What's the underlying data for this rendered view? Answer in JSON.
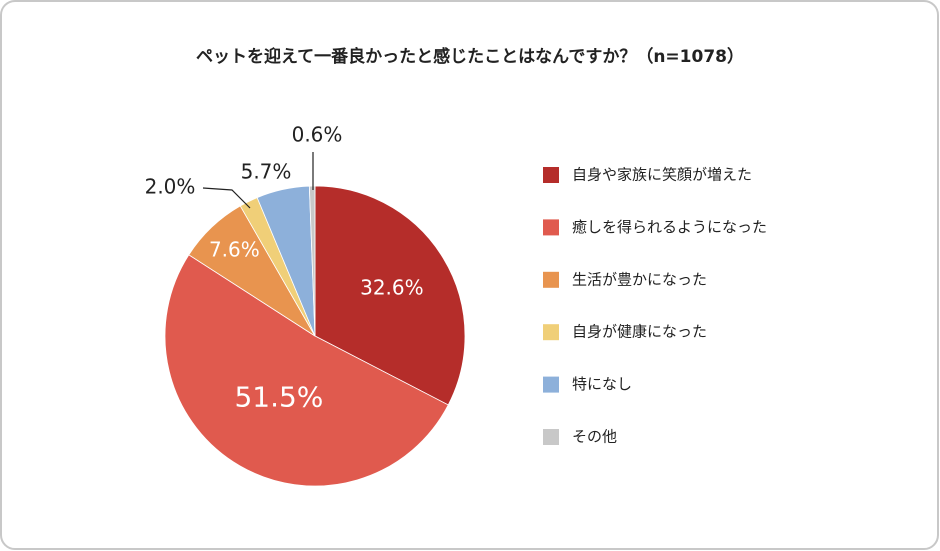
{
  "chart_data": {
    "type": "pie",
    "title": "ペットを迎えて一番良かったと感じたことはなんですか？（n=1078）",
    "categories": [
      "自身や家族に笑顔が増えた",
      "癒しを得られるようになった",
      "生活が豊かになった",
      "自身が健康になった",
      "特になし",
      "その他"
    ],
    "values": [
      32.6,
      51.5,
      7.6,
      2.0,
      5.7,
      0.6
    ],
    "value_labels": [
      "32.6%",
      "51.5%",
      "7.6%",
      "2.0%",
      "5.7%",
      "0.6%"
    ],
    "colors": [
      "#b52d2a",
      "#e05a4e",
      "#e8944f",
      "#f0cf78",
      "#8db0da",
      "#c8c8c8"
    ]
  }
}
